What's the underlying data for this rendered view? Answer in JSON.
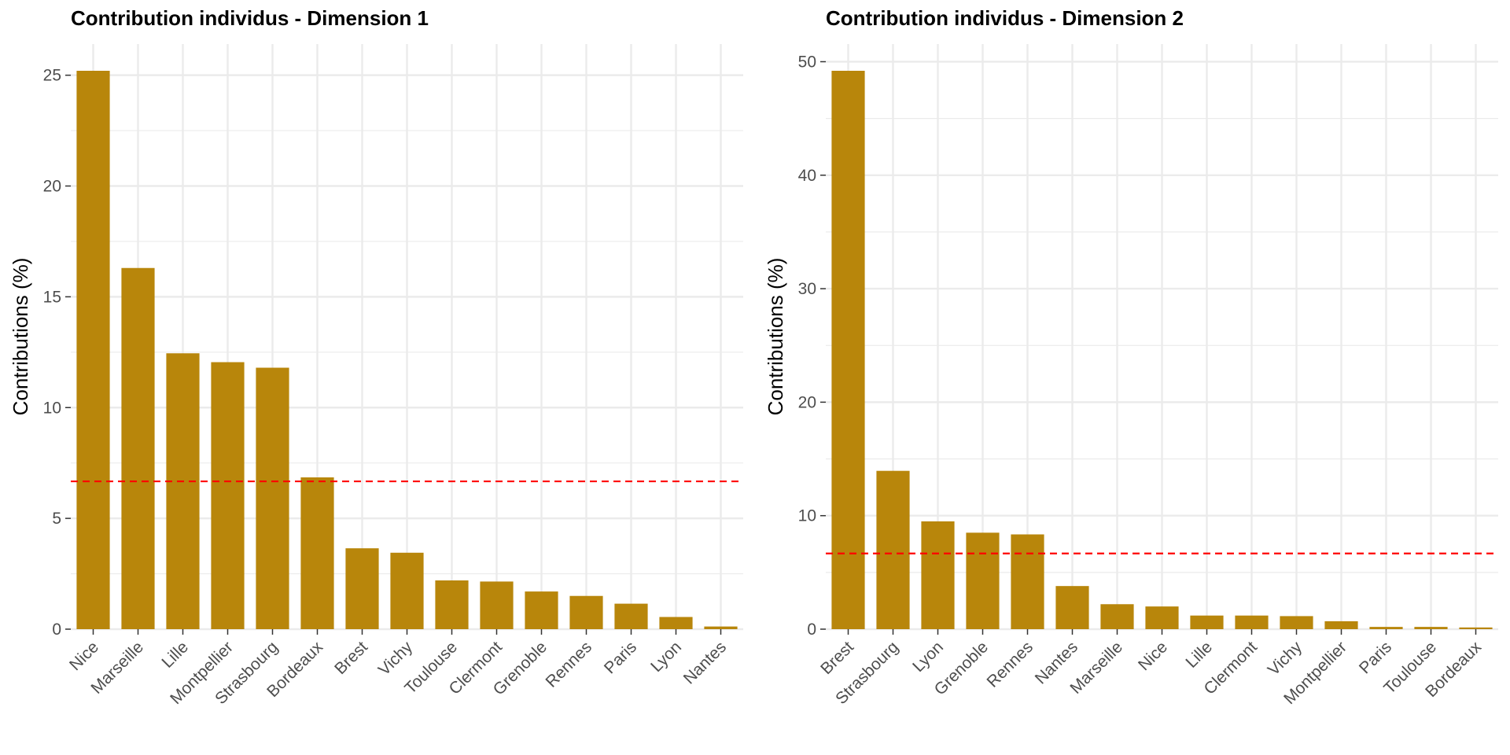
{
  "colors": {
    "bar": "#B8860B",
    "reference_line": "#FF0000",
    "grid": "#EBEBEB",
    "axis_text": "#4D4D4D"
  },
  "chart_data": [
    {
      "type": "bar",
      "title": "Contribution individus - Dimension 1",
      "ylabel": "Contributions (%)",
      "xlabel": "",
      "categories": [
        "Nice",
        "Marseille",
        "Lille",
        "Montpellier",
        "Strasbourg",
        "Bordeaux",
        "Brest",
        "Vichy",
        "Toulouse",
        "Clermont",
        "Grenoble",
        "Rennes",
        "Paris",
        "Lyon",
        "Nantes"
      ],
      "values": [
        25.2,
        16.3,
        12.45,
        12.05,
        11.8,
        6.85,
        3.65,
        3.45,
        2.2,
        2.15,
        1.7,
        1.5,
        1.15,
        0.55,
        0.12
      ],
      "reference_line": 6.67,
      "ylim": [
        0,
        25.2
      ],
      "yticks": [
        0,
        5,
        10,
        15,
        20,
        25
      ],
      "grid": true
    },
    {
      "type": "bar",
      "title": "Contribution individus - Dimension 2",
      "ylabel": "Contributions (%)",
      "xlabel": "",
      "categories": [
        "Brest",
        "Strasbourg",
        "Lyon",
        "Grenoble",
        "Rennes",
        "Nantes",
        "Marseille",
        "Nice",
        "Lille",
        "Clermont",
        "Vichy",
        "Montpellier",
        "Paris",
        "Toulouse",
        "Bordeaux"
      ],
      "values": [
        49.2,
        13.95,
        9.5,
        8.5,
        8.35,
        3.8,
        2.2,
        2.0,
        1.2,
        1.2,
        1.15,
        0.7,
        0.2,
        0.2,
        0.15
      ],
      "reference_line": 6.67,
      "ylim": [
        0,
        49.2
      ],
      "yticks": [
        0,
        10,
        20,
        30,
        40,
        50
      ],
      "grid": true
    }
  ]
}
